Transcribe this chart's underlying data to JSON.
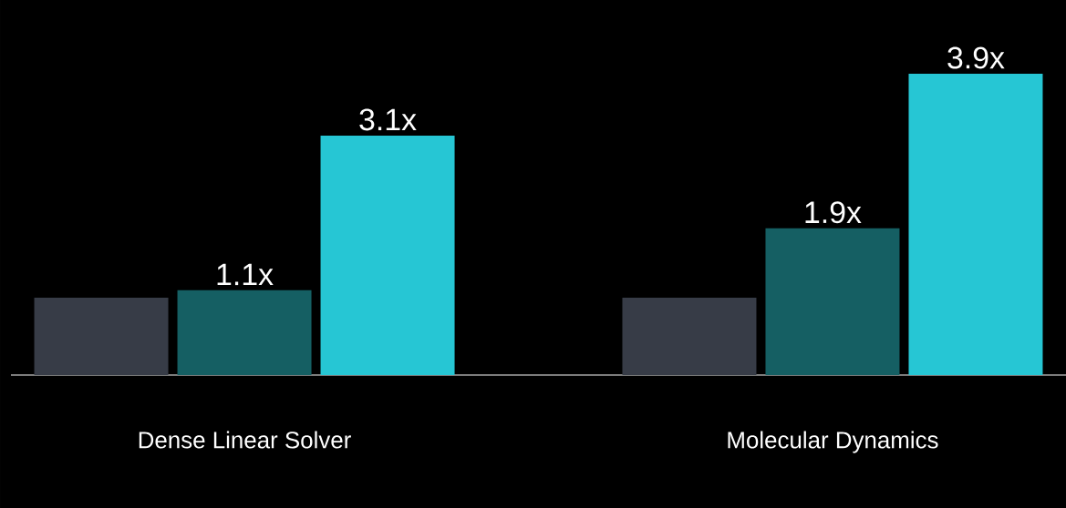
{
  "chart_data": {
    "type": "bar",
    "categories": [
      "Dense Linear Solver",
      "Molecular Dynamics"
    ],
    "series": [
      {
        "color": "#373c47",
        "values": [
          1.0,
          1.0
        ]
      },
      {
        "color": "#155f63",
        "values": [
          1.1,
          1.9
        ],
        "value_labels": [
          "1.1x",
          "1.9x"
        ]
      },
      {
        "color": "#26c6d4",
        "values": [
          3.1,
          3.9
        ],
        "value_labels": [
          "3.1x",
          "3.9x"
        ]
      }
    ],
    "tick_labels": "x"
  }
}
